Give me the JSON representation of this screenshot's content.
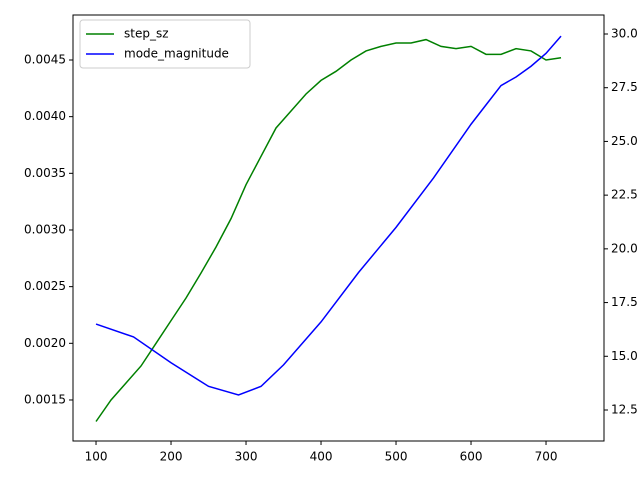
{
  "chart_data": {
    "type": "line",
    "series": [
      {
        "name": "step_sz",
        "color": "#008000",
        "axis": "y",
        "x": [
          100,
          120,
          140,
          160,
          180,
          200,
          220,
          240,
          260,
          280,
          300,
          320,
          340,
          360,
          380,
          400,
          420,
          440,
          460,
          480,
          500,
          520,
          540,
          560,
          580,
          600,
          620,
          640,
          660,
          680,
          700,
          720
        ],
        "values": [
          0.00131,
          0.0015,
          0.00165,
          0.0018,
          0.002,
          0.0022,
          0.0024,
          0.00262,
          0.00285,
          0.0031,
          0.0034,
          0.00365,
          0.0039,
          0.00405,
          0.0042,
          0.00432,
          0.0044,
          0.0045,
          0.00458,
          0.00462,
          0.00465,
          0.00465,
          0.00468,
          0.00462,
          0.0046,
          0.00462,
          0.00455,
          0.00455,
          0.0046,
          0.00458,
          0.0045,
          0.00452
        ]
      },
      {
        "name": "mode_magnitude",
        "color": "#0000ff",
        "axis": "y2",
        "x": [
          100,
          150,
          200,
          250,
          290,
          320,
          350,
          400,
          450,
          500,
          550,
          600,
          620,
          640,
          660,
          680,
          700,
          720
        ],
        "values": [
          16.5,
          15.9,
          14.7,
          13.6,
          13.2,
          13.6,
          14.6,
          16.6,
          18.9,
          21.0,
          23.3,
          25.8,
          26.7,
          27.6,
          28.0,
          28.5,
          29.1,
          29.9
        ]
      }
    ],
    "xlim": [
      69.3,
      777.3
    ],
    "xticks": [
      100,
      200,
      300,
      400,
      500,
      600,
      700
    ],
    "ylim": [
      0.001138,
      0.004897
    ],
    "yticks": [
      0.0015,
      {
        "value": 0.002,
        "label": "0.0020"
      },
      0.0025,
      {
        "value": 0.003,
        "label": "0.0030"
      },
      0.0035,
      {
        "value": 0.004,
        "label": "0.0040"
      },
      0.0045
    ],
    "y2lim": [
      11.057,
      30.884
    ],
    "y2ticks": [
      12.5,
      {
        "value": 15,
        "label": "15.0"
      },
      17.5,
      {
        "value": 20,
        "label": "20.0"
      },
      22.5,
      {
        "value": 25,
        "label": "25.0"
      },
      27.5,
      {
        "value": 30,
        "label": "30.0"
      }
    ],
    "legend": "upper left"
  }
}
